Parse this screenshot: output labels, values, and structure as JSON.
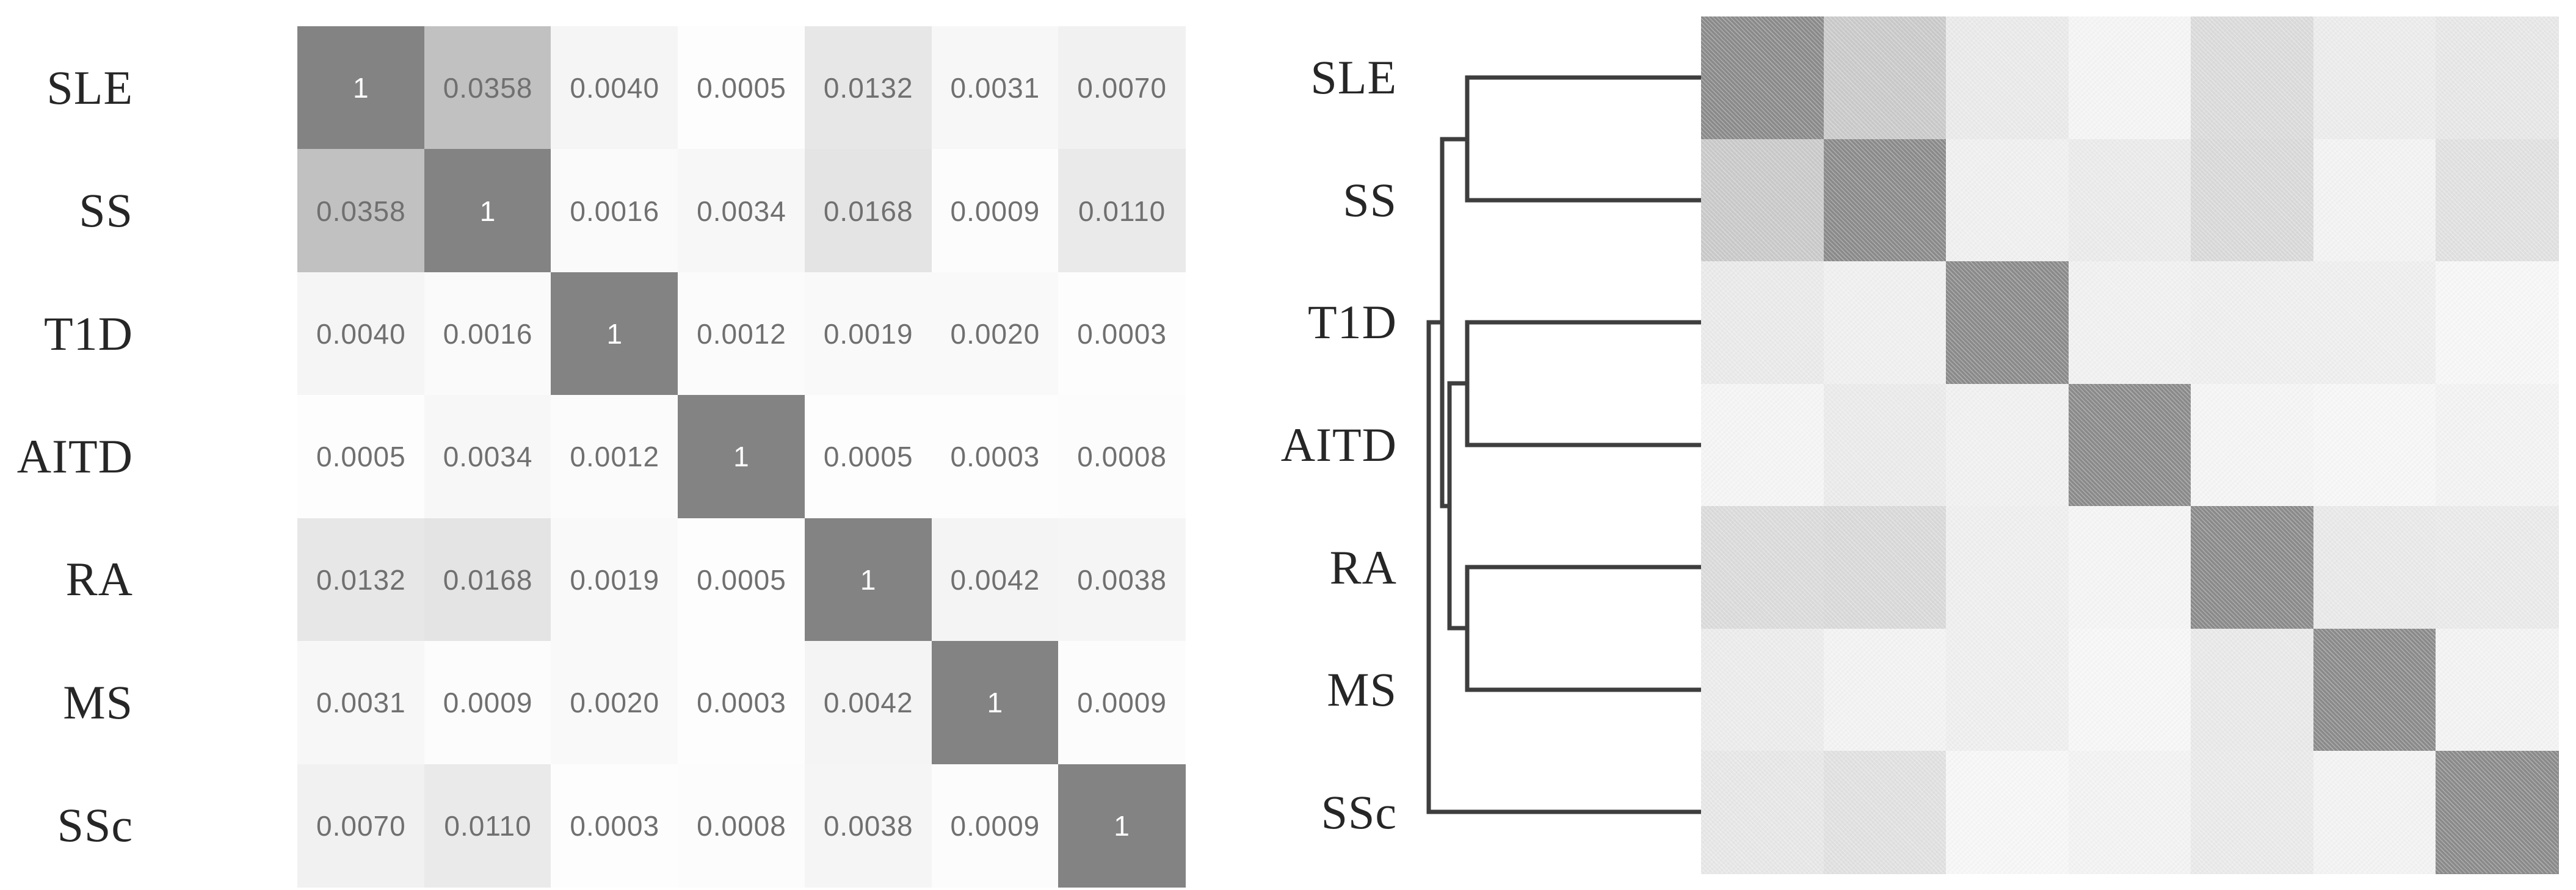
{
  "chart_data": [
    {
      "type": "heatmap",
      "panel": "left",
      "subtype": "annotated-similarity-matrix",
      "row_labels": [
        "SLE",
        "SS",
        "T1D",
        "AITD",
        "RA",
        "MS",
        "SSc"
      ],
      "col_labels": [
        "SLE",
        "SS",
        "T1D",
        "AITD",
        "RA",
        "MS",
        "SSc"
      ],
      "matrix": [
        [
          "1",
          "0.0358",
          "0.0040",
          "0.0005",
          "0.0132",
          "0.0031",
          "0.0070"
        ],
        [
          "0.0358",
          "1",
          "0.0016",
          "0.0034",
          "0.0168",
          "0.0009",
          "0.0110"
        ],
        [
          "0.0040",
          "0.0016",
          "1",
          "0.0012",
          "0.0019",
          "0.0020",
          "0.0003"
        ],
        [
          "0.0005",
          "0.0034",
          "0.0012",
          "1",
          "0.0005",
          "0.0003",
          "0.0008"
        ],
        [
          "0.0132",
          "0.0168",
          "0.0019",
          "0.0005",
          "1",
          "0.0042",
          "0.0038"
        ],
        [
          "0.0031",
          "0.0009",
          "0.0020",
          "0.0003",
          "0.0042",
          "1",
          "0.0009"
        ],
        [
          "0.0070",
          "0.0110",
          "0.0003",
          "0.0008",
          "0.0038",
          "0.0009",
          "1"
        ]
      ],
      "show_values": true,
      "value_range": [
        0,
        1
      ],
      "text_color": "#707070",
      "diagonal_text_color": "#ffffff",
      "label_color": "#262626",
      "colors": {
        "1": "#838383",
        "0.0358": "#c1c1c1",
        "0.0168": "#e4e4e4",
        "0.0132": "#e7e7e7",
        "0.0110": "#eaeaea",
        "0.0070": "#f1f1f1",
        "0.0042": "#f4f4f4",
        "0.0040": "#f5f5f5",
        "0.0038": "#f5f5f5",
        "0.0034": "#f7f7f7",
        "0.0031": "#f7f7f7",
        "0.0020": "#f9f9f9",
        "0.0019": "#f9f9f9",
        "0.0016": "#fafafa",
        "0.0012": "#fbfbfb",
        "0.0009": "#fcfcfc",
        "0.0008": "#fcfcfc",
        "0.0005": "#fdfdfd",
        "0.0003": "#fdfdfd"
      }
    },
    {
      "type": "heatmap",
      "panel": "right",
      "subtype": "clustered-heatmap-with-dendrogram",
      "row_labels": [
        "SLE",
        "SS",
        "T1D",
        "AITD",
        "RA",
        "MS",
        "SSc"
      ],
      "col_labels": [
        "SLE",
        "SS",
        "T1D",
        "AITD",
        "RA",
        "MS",
        "SSc"
      ],
      "matrix": [
        [
          "1",
          "0.0358",
          "0.0040",
          "0.0005",
          "0.0132",
          "0.0031",
          "0.0070"
        ],
        [
          "0.0358",
          "1",
          "0.0016",
          "0.0034",
          "0.0168",
          "0.0009",
          "0.0110"
        ],
        [
          "0.0040",
          "0.0016",
          "1",
          "0.0012",
          "0.0019",
          "0.0020",
          "0.0003"
        ],
        [
          "0.0005",
          "0.0034",
          "0.0012",
          "1",
          "0.0005",
          "0.0003",
          "0.0008"
        ],
        [
          "0.0132",
          "0.0168",
          "0.0019",
          "0.0005",
          "1",
          "0.0042",
          "0.0038"
        ],
        [
          "0.0031",
          "0.0009",
          "0.0020",
          "0.0003",
          "0.0042",
          "1",
          "0.0009"
        ],
        [
          "0.0070",
          "0.0110",
          "0.0003",
          "0.0008",
          "0.0038",
          "0.0009",
          "1"
        ]
      ],
      "show_values": false,
      "label_color": "#262626",
      "dendrogram": {
        "newick": "(((SLE,SS),((T1D,AITD),(RA,MS))),SSc);",
        "leaf_order": [
          "SLE",
          "SS",
          "T1D",
          "AITD",
          "RA",
          "MS",
          "SSc"
        ],
        "merges": [
          {
            "pair": [
              "SLE",
              "SS"
            ],
            "order": 1
          },
          {
            "pair": [
              "T1D",
              "AITD"
            ],
            "order": 1
          },
          {
            "pair": [
              "RA",
              "MS"
            ],
            "order": 1
          },
          {
            "pair": [
              "(T1D,AITD)",
              "(RA,MS)"
            ],
            "order": 2
          },
          {
            "pair": [
              "(SLE,SS)",
              "((T1D,AITD),(RA,MS))"
            ],
            "order": 3
          },
          {
            "pair": [
              "(((SLE,SS),((T1D,AITD),(RA,MS))))",
              "SSc"
            ],
            "order": 4
          }
        ],
        "line_color": "#3e3e3e"
      },
      "colors": {
        "1": "#8a8a8a",
        "0.0358": "#c9c9c9",
        "0.0168": "#d8d8d8",
        "0.0132": "#dadada",
        "0.0110": "#e0e0e0",
        "0.0070": "#e6e6e6",
        "0.0042": "#e8e8e8",
        "0.0040": "#e9e9e9",
        "0.0038": "#e9e9e9",
        "0.0034": "#eaeaea",
        "0.0031": "#ebebeb",
        "0.0020": "#eeeeee",
        "0.0019": "#eeeeee",
        "0.0016": "#efefef",
        "0.0012": "#f0f0f0",
        "0.0009": "#f2f2f2",
        "0.0008": "#f2f2f2",
        "0.0005": "#f4f4f4",
        "0.0003": "#f6f6f6"
      },
      "background": "#ffffff"
    }
  ]
}
